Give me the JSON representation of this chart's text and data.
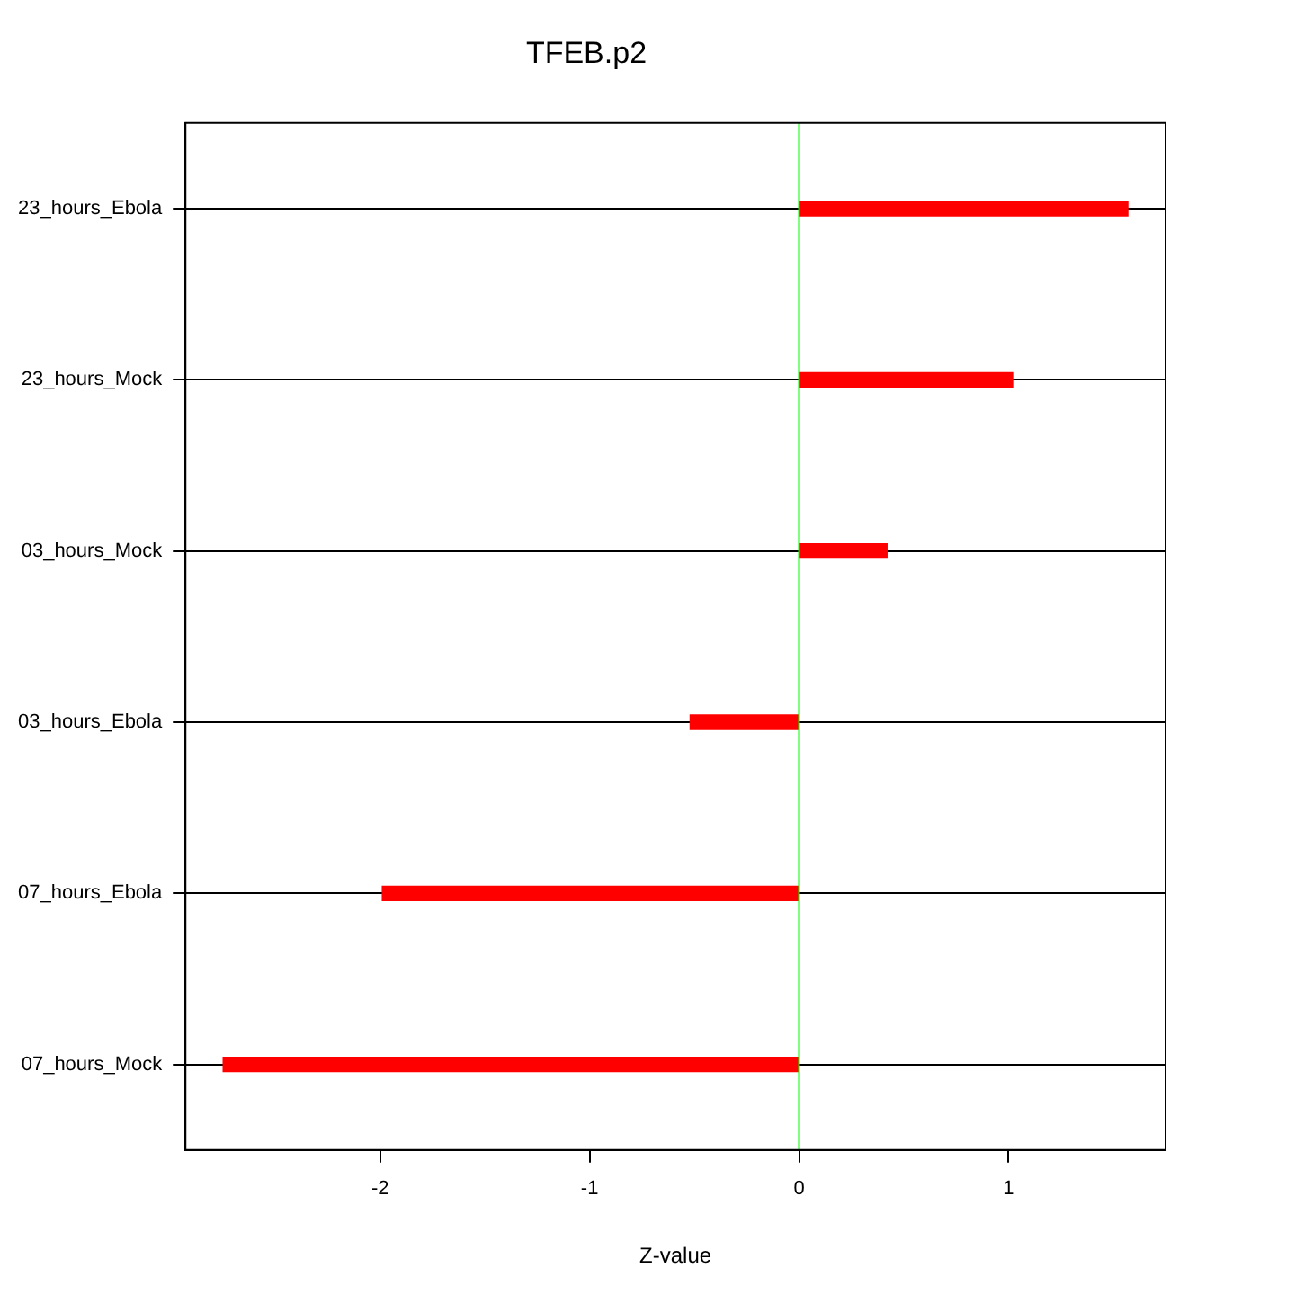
{
  "chart_data": {
    "type": "bar",
    "orientation": "horizontal",
    "title": "TFEB.p2",
    "xlabel": "Z-value",
    "categories": [
      "23_hours_Ebola",
      "23_hours_Mock",
      "03_hours_Mock",
      "03_hours_Ebola",
      "07_hours_Ebola",
      "07_hours_Mock"
    ],
    "values": [
      1.57,
      1.02,
      0.42,
      -0.52,
      -1.99,
      -2.75
    ],
    "color": "#ff0000",
    "xlim": [
      -2.93,
      1.75
    ],
    "xticks": [
      -2,
      -1,
      0,
      1
    ],
    "grid": "y",
    "legend": false,
    "ref_lines": [
      {
        "axis": "x",
        "value": 0,
        "color": "#00ff00"
      }
    ]
  }
}
